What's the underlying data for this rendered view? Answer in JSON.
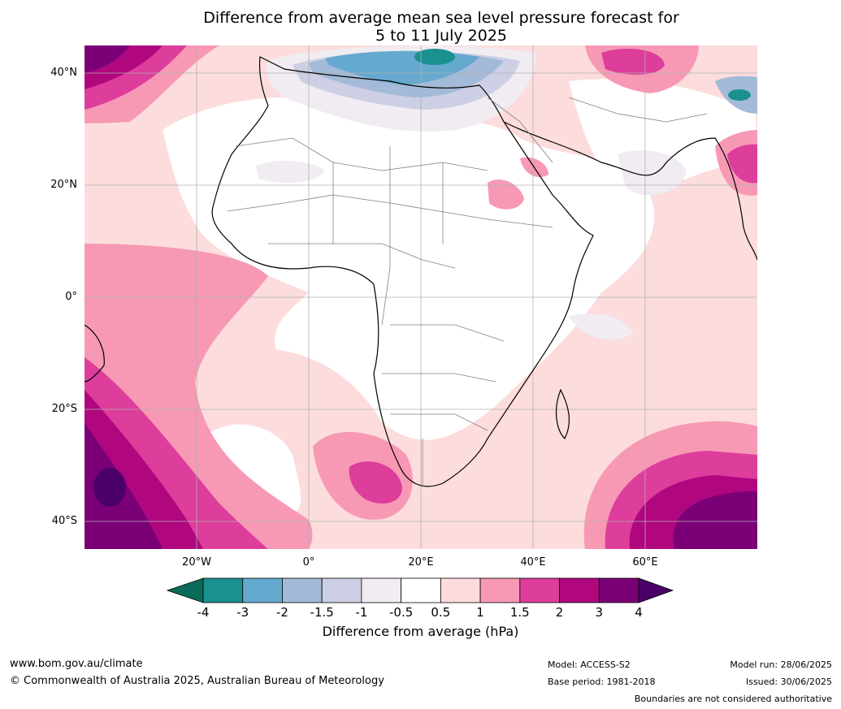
{
  "title_line1": "Difference from average mean sea level pressure forecast for",
  "title_line2": "5 to 11 July 2025",
  "lat_labels": [
    "40°N",
    "20°N",
    "0°",
    "20°S",
    "40°S"
  ],
  "lon_labels": [
    "20°W",
    "0°",
    "20°E",
    "40°E",
    "60°E"
  ],
  "colorbar": {
    "ticks": [
      "-4",
      "-3",
      "-2",
      "-1.5",
      "-1",
      "-0.5",
      "0.5",
      "1",
      "1.5",
      "2",
      "3",
      "4"
    ],
    "colors": [
      "#0b6b5a",
      "#1a9090",
      "#65a9cf",
      "#a3bad8",
      "#cdcfe4",
      "#f0ecf2",
      "#ffffff",
      "#fcdcdc",
      "#f799b4",
      "#dd3d9b",
      "#b0077f",
      "#7b0077",
      "#4a0068"
    ],
    "title": "Difference from average (hPa)"
  },
  "footer": {
    "website": "www.bom.gov.au/climate",
    "copyright": "© Commonwealth of Australia 2025, Australian Bureau of Meteorology",
    "model": "Model: ACCESS-S2",
    "base_period": "Base period: 1981-2018",
    "model_run": "Model run: 28/06/2025",
    "issued": "Issued: 30/06/2025",
    "disclaimer": "Boundaries are not considered authoritative"
  }
}
